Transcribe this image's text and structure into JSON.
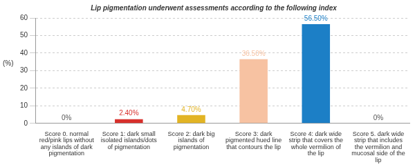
{
  "chart_data": {
    "type": "bar",
    "title": "Lip pigmentation underwent assessments according to the following index",
    "y_label": "(%)",
    "categories": [
      "Score 0. normal red/pink lips without any islands of dark pigmentation",
      "Score 1: dark small isolated islands/dots of pigmentation",
      "Score 2: dark big islands of pigmentation",
      "Score 3: dark pigmented hued line that contours the lip",
      "Score 4: dark wide strip that covers the whole vermilion of the lip",
      "Score 5. dark wide strip that includes the vermilion and mucosal side of the lip"
    ],
    "values": [
      0,
      2.4,
      4.7,
      36.5,
      56.5,
      0
    ],
    "value_labels": [
      "0%",
      "2.40%",
      "4.70%",
      "36.50%",
      "56.50%",
      "0%"
    ],
    "colors": [
      "#c4c4c4",
      "#d8302c",
      "#e2b424",
      "#f7c2a2",
      "#1c7fc6",
      "#c4c4c4"
    ],
    "ylim": [
      0,
      60
    ],
    "yticks": [
      0,
      10,
      20,
      30,
      40,
      50,
      60
    ],
    "grid": true,
    "data_labels": true
  }
}
